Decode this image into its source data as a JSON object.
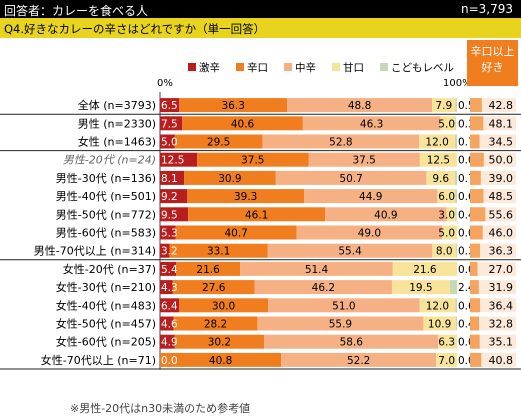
{
  "header": {
    "respondents": "回答者：カレーを食べる人",
    "n": "n=3,793"
  },
  "question": "Q4.好きなカレーの辛さはどれですか（単一回答）",
  "axis": {
    "min_label": "0%",
    "max_label": "100%"
  },
  "right_header": "辛口以上好き",
  "note": "※男性-20代はn30未満のため参考値",
  "colors": {
    "gekikara": "#b81e1e",
    "karakuchi": "#f07d1e",
    "chukara": "#f5b183",
    "amakuchi": "#f7e49a",
    "kodomo": "#c9d8b0"
  },
  "chart_data": {
    "type": "bar",
    "stacked": true,
    "orientation": "horizontal",
    "xlim": [
      0,
      100
    ],
    "series_names": [
      "激辛",
      "辛口",
      "中辛",
      "甘口",
      "こどもレベル"
    ],
    "categories": [
      "全体 (n=3793)",
      "男性 (n=2330)",
      "女性 (n=1463)",
      "男性-20代 (n=24)",
      "男性-30代 (n=136)",
      "男性-40代 (n=501)",
      "男性-50代 (n=772)",
      "男性-60代 (n=583)",
      "男性-70代以上 (n=314)",
      "女性-20代 (n=37)",
      "女性-30代 (n=210)",
      "女性-40代 (n=483)",
      "女性-50代 (n=457)",
      "女性-60代 (n=205)",
      "女性-70代以上 (n=71)"
    ],
    "italic_rows": [
      3
    ],
    "series": [
      {
        "name": "激辛",
        "values": [
          6.5,
          7.5,
          5.0,
          12.5,
          8.1,
          9.2,
          9.5,
          5.3,
          3.2,
          5.4,
          4.3,
          6.4,
          4.6,
          4.9,
          0.0
        ]
      },
      {
        "name": "辛口",
        "values": [
          36.3,
          40.6,
          29.5,
          37.5,
          30.9,
          39.3,
          46.1,
          40.7,
          33.1,
          21.6,
          27.6,
          30.0,
          28.2,
          30.2,
          40.8
        ]
      },
      {
        "name": "中辛",
        "values": [
          48.8,
          46.3,
          52.8,
          37.5,
          50.7,
          44.9,
          40.9,
          49.0,
          55.4,
          51.4,
          46.2,
          51.0,
          55.9,
          58.6,
          52.2
        ]
      },
      {
        "name": "甘口",
        "values": [
          7.9,
          5.0,
          12.0,
          12.5,
          9.6,
          6.0,
          3.0,
          5.0,
          8.0,
          21.6,
          19.5,
          12.0,
          10.9,
          6.3,
          7.0
        ]
      },
      {
        "name": "こどもレベル",
        "values": [
          0.5,
          0.3,
          0.7,
          0.0,
          0.7,
          0.6,
          0.4,
          0.0,
          0.3,
          0.0,
          2.4,
          0.6,
          0.4,
          0.0,
          0.0
        ]
      }
    ],
    "display_labels": [
      [
        "6.5",
        "36.3",
        "48.8",
        "7.9",
        "0.5"
      ],
      [
        "7.5",
        "40.6",
        "46.3",
        "5.0",
        "0.3"
      ],
      [
        "5.0",
        "29.5",
        "52.8",
        "12.0",
        "0.7"
      ],
      [
        "12.5",
        "37.5",
        "37.5",
        "12.5",
        "0.0"
      ],
      [
        "8.1",
        "30.9",
        "50.7",
        "9.6",
        "0.7"
      ],
      [
        "9.2",
        "39.3",
        "44.9",
        "6.0",
        "0.6"
      ],
      [
        "9.5",
        "46.1",
        "40.9",
        "3.0",
        "0.4"
      ],
      [
        "5.3",
        "40.7",
        "49.0",
        "5.0",
        "0.0"
      ],
      [
        "3.2",
        "33.1",
        "55.4",
        "8.0",
        "0.3"
      ],
      [
        "5.4",
        "21.6",
        "51.4",
        "21.6",
        "0.0"
      ],
      [
        "4.3",
        "27.6",
        "46.2",
        "19.5",
        "2.4"
      ],
      [
        "6.4",
        "30.0",
        "51.0",
        "12.0",
        "0.6"
      ],
      [
        "4.6",
        "28.2",
        "55.9",
        "10.9",
        "0.4"
      ],
      [
        "4.9",
        "30.2",
        "58.6",
        "6.3",
        "0.0"
      ],
      [
        "0.0",
        "40.8",
        "52.2",
        "7.0",
        "0.0"
      ]
    ],
    "right_column": {
      "label": "辛口以上好き",
      "values": [
        42.8,
        48.1,
        34.5,
        50.0,
        39.0,
        48.5,
        55.6,
        46.0,
        36.3,
        27.0,
        31.9,
        36.4,
        32.8,
        35.1,
        40.8
      ],
      "display": [
        "42.8",
        "48.1",
        "34.5",
        "50.0",
        "39.0",
        "48.5",
        "55.6",
        "46.0",
        "36.3",
        "27.0",
        "31.9",
        "36.4",
        "32.8",
        "35.1",
        "40.8"
      ]
    }
  }
}
